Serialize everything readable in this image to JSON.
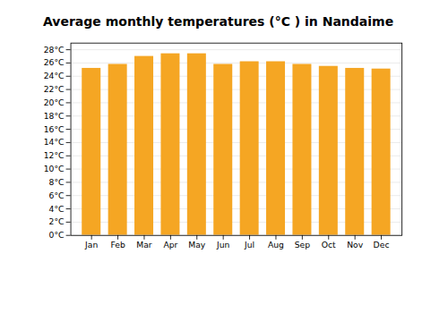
{
  "chart_data": {
    "type": "bar",
    "title": "Average monthly temperatures (°C ) in Nandaime",
    "categories": [
      "Jan",
      "Feb",
      "Mar",
      "Apr",
      "May",
      "Jun",
      "Jul",
      "Aug",
      "Sep",
      "Oct",
      "Nov",
      "Dec"
    ],
    "values": [
      25.2,
      25.8,
      27.0,
      27.4,
      27.4,
      25.8,
      26.2,
      26.2,
      25.8,
      25.5,
      25.2,
      25.1
    ],
    "color": "#F5A623",
    "ylim": [
      0,
      29
    ],
    "yticks": [
      {
        "value": 0,
        "label": "0°C"
      },
      {
        "value": 2,
        "label": "2°C"
      },
      {
        "value": 4,
        "label": "4°C"
      },
      {
        "value": 6,
        "label": "6°C"
      },
      {
        "value": 8,
        "label": "8°C"
      },
      {
        "value": 10,
        "label": "10°C"
      },
      {
        "value": 12,
        "label": "12°C"
      },
      {
        "value": 14,
        "label": "14°C"
      },
      {
        "value": 16,
        "label": "16°C"
      },
      {
        "value": 18,
        "label": "18°C"
      },
      {
        "value": 20,
        "label": "20°C"
      },
      {
        "value": 22,
        "label": "22°C"
      },
      {
        "value": 24,
        "label": "24°C"
      },
      {
        "value": 26,
        "label": "26°C"
      },
      {
        "value": 28,
        "label": "28°C"
      }
    ],
    "grid": true
  }
}
